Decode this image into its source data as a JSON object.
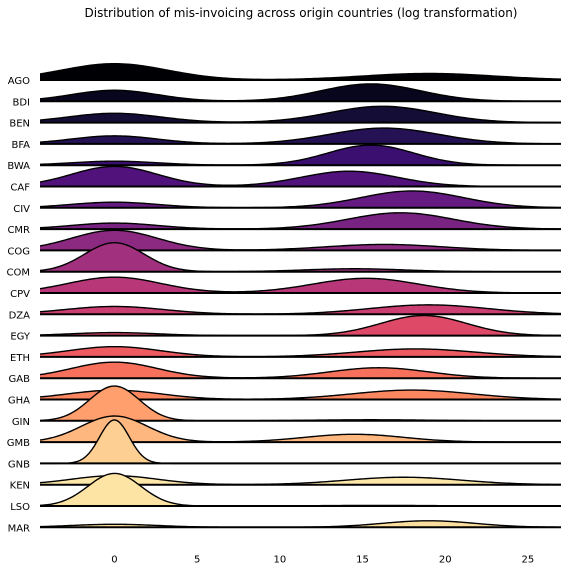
{
  "chart_data": {
    "type": "ridgeline",
    "title": "Distribution of mis-invoicing across origin countries (log transformation)",
    "xlabel": "",
    "ylabel": "",
    "xlim": [
      -4.5,
      27
    ],
    "xticks": [
      0,
      5,
      10,
      15,
      20,
      25
    ],
    "colormap": "magma",
    "series": [
      {
        "name": "AGO",
        "color": "#000004",
        "components": [
          {
            "mu": 0,
            "sigma": 3.2,
            "w": 1.0
          },
          {
            "mu": 19,
            "sigma": 4.0,
            "w": 0.5
          }
        ]
      },
      {
        "name": "BDI",
        "color": "#08061c",
        "components": [
          {
            "mu": 0,
            "sigma": 2.6,
            "w": 0.55
          },
          {
            "mu": 15.5,
            "sigma": 3.0,
            "w": 1.0
          }
        ]
      },
      {
        "name": "BEN",
        "color": "#140e36",
        "components": [
          {
            "mu": 0,
            "sigma": 2.8,
            "w": 0.5
          },
          {
            "mu": 16.2,
            "sigma": 3.2,
            "w": 1.0
          }
        ]
      },
      {
        "name": "BFA",
        "color": "#251255",
        "components": [
          {
            "mu": 0,
            "sigma": 2.6,
            "w": 0.4
          },
          {
            "mu": 16.3,
            "sigma": 3.3,
            "w": 1.0
          }
        ]
      },
      {
        "name": "BWA",
        "color": "#3b0f70",
        "components": [
          {
            "mu": 0,
            "sigma": 2.6,
            "w": 0.2
          },
          {
            "mu": 15.5,
            "sigma": 2.6,
            "w": 1.0
          }
        ]
      },
      {
        "name": "CAF",
        "color": "#51127c",
        "components": [
          {
            "mu": 0,
            "sigma": 2.6,
            "w": 1.0
          },
          {
            "mu": 14.2,
            "sigma": 2.9,
            "w": 0.85
          }
        ]
      },
      {
        "name": "CIV",
        "color": "#641a80",
        "components": [
          {
            "mu": 0,
            "sigma": 2.6,
            "w": 0.28
          },
          {
            "mu": 18.0,
            "sigma": 3.1,
            "w": 1.0
          }
        ]
      },
      {
        "name": "CMR",
        "color": "#782281",
        "components": [
          {
            "mu": 0,
            "sigma": 2.6,
            "w": 0.3
          },
          {
            "mu": 17.3,
            "sigma": 3.2,
            "w": 1.0
          }
        ]
      },
      {
        "name": "COG",
        "color": "#8c2981",
        "components": [
          {
            "mu": 0,
            "sigma": 2.6,
            "w": 1.0
          },
          {
            "mu": 16.3,
            "sigma": 3.5,
            "w": 0.4
          }
        ]
      },
      {
        "name": "COM",
        "color": "#a1307e",
        "components": [
          {
            "mu": 0,
            "sigma": 1.8,
            "w": 1.0
          },
          {
            "mu": 14.5,
            "sigma": 3.0,
            "w": 0.17
          }
        ]
      },
      {
        "name": "CPV",
        "color": "#b73779",
        "components": [
          {
            "mu": 0,
            "sigma": 2.8,
            "w": 0.85
          },
          {
            "mu": 15.2,
            "sigma": 3.2,
            "w": 0.9
          }
        ]
      },
      {
        "name": "DZA",
        "color": "#ca3e72",
        "components": [
          {
            "mu": 0,
            "sigma": 3.0,
            "w": 0.45
          },
          {
            "mu": 19.0,
            "sigma": 3.6,
            "w": 0.65
          }
        ]
      },
      {
        "name": "EGY",
        "color": "#de4968",
        "components": [
          {
            "mu": 0,
            "sigma": 2.6,
            "w": 0.15
          },
          {
            "mu": 18.7,
            "sigma": 2.6,
            "w": 1.0
          }
        ]
      },
      {
        "name": "ETH",
        "color": "#ed5a5f",
        "components": [
          {
            "mu": 0,
            "sigma": 2.8,
            "w": 0.55
          },
          {
            "mu": 18.2,
            "sigma": 3.6,
            "w": 0.55
          }
        ]
      },
      {
        "name": "GAB",
        "color": "#f6705c",
        "components": [
          {
            "mu": 0,
            "sigma": 2.6,
            "w": 0.8
          },
          {
            "mu": 16.0,
            "sigma": 3.0,
            "w": 0.6
          }
        ]
      },
      {
        "name": "GHA",
        "color": "#fb8761",
        "components": [
          {
            "mu": 0,
            "sigma": 2.8,
            "w": 0.5
          },
          {
            "mu": 18.0,
            "sigma": 3.6,
            "w": 0.65
          }
        ]
      },
      {
        "name": "GIN",
        "color": "#fe9f6d",
        "components": [
          {
            "mu": 0,
            "sigma": 1.5,
            "w": 1.0
          },
          {
            "mu": 15.5,
            "sigma": 3.5,
            "w": 0.07
          }
        ]
      },
      {
        "name": "GMB",
        "color": "#feb77e",
        "components": [
          {
            "mu": 0,
            "sigma": 2.0,
            "w": 1.0
          },
          {
            "mu": 14.5,
            "sigma": 3.0,
            "w": 0.45
          }
        ]
      },
      {
        "name": "GNB",
        "color": "#fecf92",
        "components": [
          {
            "mu": 0,
            "sigma": 0.9,
            "w": 1.0
          }
        ]
      },
      {
        "name": "KEN",
        "color": "#fde7a9",
        "components": [
          {
            "mu": 0,
            "sigma": 2.6,
            "w": 0.45
          },
          {
            "mu": 17.5,
            "sigma": 3.5,
            "w": 0.5
          }
        ]
      },
      {
        "name": "LSO",
        "color": "#fde3a4",
        "components": [
          {
            "mu": 0,
            "sigma": 1.6,
            "w": 1.0
          },
          {
            "mu": 16.0,
            "sigma": 3.5,
            "w": 0.04
          }
        ]
      },
      {
        "name": "MAR",
        "color": "#fcdf9e",
        "components": [
          {
            "mu": 0,
            "sigma": 2.6,
            "w": 0.15
          },
          {
            "mu": 19.0,
            "sigma": 2.8,
            "w": 0.35
          }
        ]
      }
    ]
  }
}
